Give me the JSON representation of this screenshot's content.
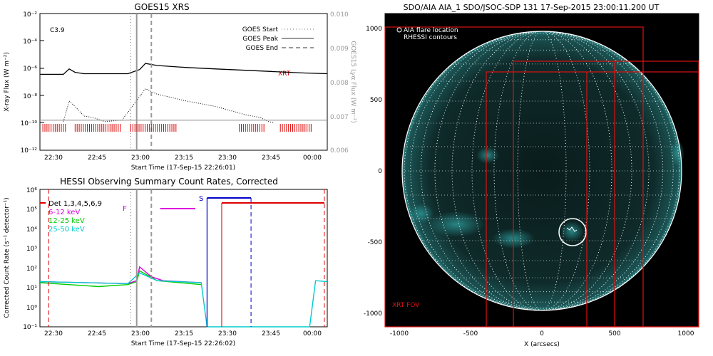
{
  "goes_panel": {
    "title": "GOES15 XRS",
    "xlabel": "Start Time (17-Sep-15 22:26:01)",
    "ylabel": "X-ray Flux (W m⁻²)",
    "y2label": "GOES15 Lyα Flux (W m⁻²)",
    "class_label": "C3.9",
    "xrt_marker": "XRT",
    "legend": [
      "GOES Start",
      "GOES Peak",
      "GOES End"
    ],
    "x_ticks": [
      "22:30",
      "22:45",
      "23:00",
      "23:15",
      "23:30",
      "23:45",
      "00:00"
    ],
    "y_ticks": [
      "10⁻²",
      "10⁻⁴",
      "10⁻⁶",
      "10⁻⁸",
      "10⁻¹⁰",
      "10⁻¹²"
    ],
    "y2_ticks": [
      "0.010",
      "0.009",
      "0.008",
      "0.007",
      "0.006"
    ]
  },
  "hessi_panel": {
    "title": "HESSI Observing Summary Count Rates, Corrected",
    "xlabel": "Start Time (17-Sep-15 22:26:02)",
    "ylabel": "Corrected Count Rate (s⁻¹ detector⁻¹)",
    "legend": [
      "Det 1,3,4,5,6,9",
      "6-12 keV",
      "12-25 keV",
      "25-50 keV"
    ],
    "flag_f": "F",
    "flag_s": "S",
    "x_ticks": [
      "22:30",
      "22:45",
      "23:00",
      "23:15",
      "23:30",
      "23:45",
      "00:00"
    ],
    "y_ticks": [
      "10⁶",
      "10⁵",
      "10⁴",
      "10³",
      "10²",
      "10¹",
      "10⁰",
      "10⁻¹"
    ]
  },
  "aia_panel": {
    "title": "SDO/AIA AIA_1 SDO/JSOC-SDP 131 17-Sep-2015 23:00:11.200 UT",
    "legend": [
      "AIA flare location",
      "RHESSI contours"
    ],
    "fov_label": "XRT FOV",
    "xlabel": "X (arcsecs)",
    "x_ticks": [
      "-1000",
      "-500",
      "0",
      "500",
      "1000"
    ],
    "y_ticks": [
      "1000",
      "500",
      "0",
      "-500",
      "-1000"
    ]
  },
  "chart_data": [
    {
      "type": "line",
      "title": "GOES15 XRS",
      "xlabel": "Start Time (17-Sep-15 22:26:01)",
      "ylabel": "X-ray Flux (W m^-2)",
      "y2label": "GOES15 Lyα Flux (W m^-2)",
      "xlim_minutes_after_2226": [
        0,
        98
      ],
      "ylim_log10": [
        -12,
        -2
      ],
      "y2lim": [
        0.006,
        0.01
      ],
      "series": [
        {
          "name": "",
          "x": [
            0,
            8,
            10,
            12,
            15,
            25,
            30,
            34,
            36,
            40,
            50,
            60,
            70,
            80,
            90,
            98
          ],
          "y": [
            -6.45,
            -6.45,
            -6.05,
            -6.3,
            -6.4,
            -6.4,
            -6.4,
            -6.1,
            -5.65,
            -5.8,
            -5.95,
            -6.05,
            -6.15,
            -6.25,
            -6.35,
            -6.4
          ]
        },
        {
          "name": "",
          "x": [
            8,
            10,
            12,
            15,
            18,
            22,
            28,
            36,
            40,
            50,
            60,
            70,
            75,
            78,
            80
          ],
          "y": [
            -9.9,
            -8.4,
            -8.8,
            -9.5,
            -9.6,
            -9.9,
            -9.8,
            -7.5,
            -7.9,
            -8.4,
            -8.8,
            -9.4,
            -9.6,
            -9.9,
            -10
          ]
        },
        {
          "name": "",
          "x": [
            0,
            98
          ],
          "y": [
            -9.8,
            -9.8
          ]
        }
      ],
      "vertical_lines": {
        "GOES Start": 31,
        "GOES Peak": 33,
        "GOES End": 38
      },
      "class": "C3.9",
      "xrt_marker": "XRT"
    },
    {
      "type": "line",
      "title": "HESSI Observing Summary Count Rates, Corrected",
      "xlabel": "Start Time (17-Sep-15 22:26:02)",
      "ylabel": "Corrected Count Rate (s^-1 detector^-1)",
      "xlim_minutes_after_2226": [
        0,
        98
      ],
      "ylim_log10": [
        -1,
        6
      ],
      "series": [
        {
          "name": "6-12 keV",
          "x": [
            0,
            30,
            33,
            34,
            38,
            42,
            55
          ],
          "y": [
            1.3,
            1.2,
            1.35,
            2.05,
            1.55,
            1.35,
            1.25
          ]
        },
        {
          "name": "12-25 keV",
          "x": [
            0,
            20,
            30,
            33,
            34,
            40,
            55
          ],
          "y": [
            1.25,
            1.05,
            1.15,
            1.3,
            1.85,
            1.35,
            1.15
          ]
        },
        {
          "name": "25-50 keV",
          "x": [
            0,
            30,
            34,
            40,
            55,
            57,
            92,
            94,
            98
          ],
          "y": [
            1.3,
            1.2,
            1.75,
            1.35,
            1.25,
            -1,
            -1,
            1.35,
            1.3
          ]
        }
      ],
      "flags": [
        {
          "label": "F",
          "x_start": 41,
          "x_end": 53
        },
        {
          "label": "S",
          "x_start": 57,
          "x_end": 72
        }
      ]
    }
  ]
}
